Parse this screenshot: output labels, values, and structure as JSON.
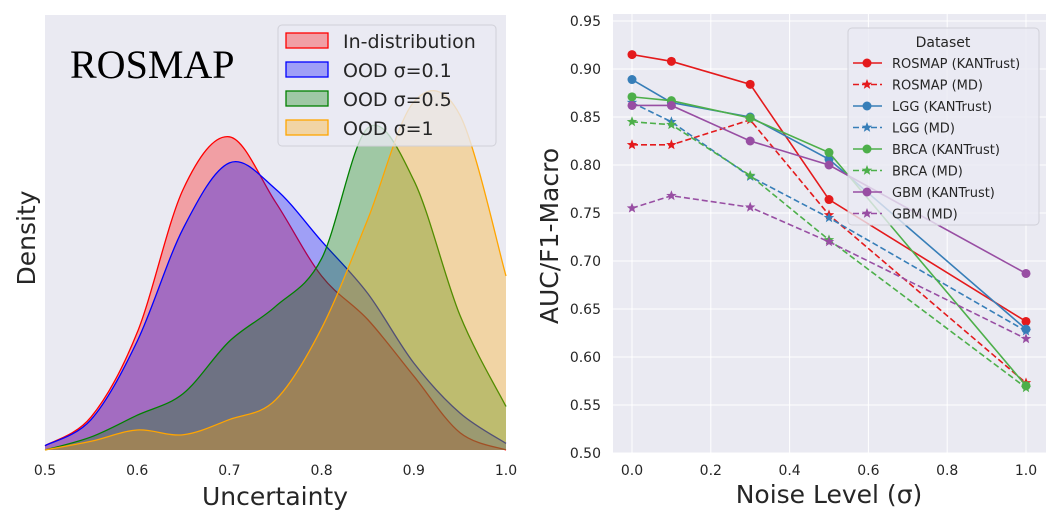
{
  "chart_data": [
    {
      "type": "area",
      "title": "ROSMAP",
      "xlabel": "Uncertainty",
      "ylabel": "Density",
      "xlim": [
        0.5,
        1.0
      ],
      "ylim": [
        0,
        1
      ],
      "x_ticks": [
        "0.5",
        "0.6",
        "0.7",
        "0.8",
        "0.9",
        "1.0"
      ],
      "grid": false,
      "legend_position": "top-right",
      "x": [
        0.5,
        0.55,
        0.6,
        0.65,
        0.7,
        0.75,
        0.8,
        0.85,
        0.9,
        0.95,
        1.0
      ],
      "series": [
        {
          "name": "In-distribution",
          "color": "#ff0000",
          "values": [
            0.01,
            0.076,
            0.27,
            0.6,
            0.72,
            0.57,
            0.4,
            0.3,
            0.17,
            0.04,
            0.0
          ]
        },
        {
          "name": "OOD σ=0.1",
          "color": "#0000ff",
          "values": [
            0.01,
            0.07,
            0.25,
            0.51,
            0.66,
            0.6,
            0.48,
            0.36,
            0.2,
            0.085,
            0.015
          ]
        },
        {
          "name": "OOD σ=0.5",
          "color": "#008000",
          "values": [
            0.0,
            0.03,
            0.08,
            0.13,
            0.25,
            0.33,
            0.44,
            0.74,
            0.62,
            0.31,
            0.1
          ]
        },
        {
          "name": "OOD σ=1",
          "color": "#ffa500",
          "values": [
            0.0,
            0.02,
            0.046,
            0.035,
            0.07,
            0.115,
            0.28,
            0.53,
            0.8,
            0.77,
            0.4
          ]
        }
      ]
    },
    {
      "type": "line",
      "title": "",
      "xlabel": "Noise Level (σ)",
      "ylabel": "AUC/F1-Macro",
      "xlim": [
        -0.05,
        1.05
      ],
      "ylim": [
        0.5,
        0.95
      ],
      "x_ticks": [
        "0.0",
        "0.2",
        "0.4",
        "0.6",
        "0.8",
        "1.0"
      ],
      "y_ticks": [
        "0.50",
        "0.55",
        "0.60",
        "0.65",
        "0.70",
        "0.75",
        "0.80",
        "0.85",
        "0.90",
        "0.95"
      ],
      "grid": true,
      "legend_title": "Dataset",
      "legend_position": "top-right",
      "x": [
        0.0,
        0.1,
        0.3,
        0.5,
        1.0
      ],
      "series": [
        {
          "name": "ROSMAP (KANTrust)",
          "color": "#e41a1c",
          "style": "solid",
          "marker": "circle",
          "values": [
            0.915,
            0.908,
            0.884,
            0.764,
            0.637
          ]
        },
        {
          "name": "ROSMAP (MD)",
          "color": "#e41a1c",
          "style": "dashed",
          "marker": "star",
          "values": [
            0.821,
            0.821,
            0.847,
            0.748,
            0.573
          ]
        },
        {
          "name": "LGG (KANTrust)",
          "color": "#377eb8",
          "style": "solid",
          "marker": "circle",
          "values": [
            0.889,
            0.865,
            0.85,
            0.806,
            0.629
          ]
        },
        {
          "name": "LGG (MD)",
          "color": "#377eb8",
          "style": "dashed",
          "marker": "star",
          "values": [
            0.865,
            0.845,
            0.788,
            0.745,
            0.627
          ]
        },
        {
          "name": "BRCA (KANTrust)",
          "color": "#4daf4a",
          "style": "solid",
          "marker": "circle",
          "values": [
            0.871,
            0.867,
            0.849,
            0.813,
            0.57
          ]
        },
        {
          "name": "BRCA (MD)",
          "color": "#4daf4a",
          "style": "dashed",
          "marker": "star",
          "values": [
            0.845,
            0.842,
            0.789,
            0.722,
            0.568
          ]
        },
        {
          "name": "GBM (KANTrust)",
          "color": "#984ea3",
          "style": "solid",
          "marker": "circle",
          "values": [
            0.862,
            0.862,
            0.825,
            0.8,
            0.687
          ]
        },
        {
          "name": "GBM (MD)",
          "color": "#984ea3",
          "style": "dashed",
          "marker": "star",
          "values": [
            0.755,
            0.768,
            0.756,
            0.72,
            0.619
          ]
        }
      ]
    }
  ]
}
